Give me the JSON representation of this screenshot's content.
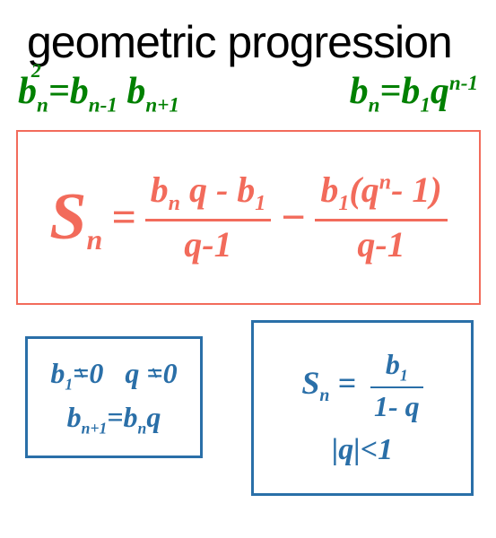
{
  "title": "geometric progression",
  "colors": {
    "title": "#000000",
    "green": "#008000",
    "coral": "#f26b5b",
    "blue": "#2a6fa8",
    "background": "#ffffff"
  },
  "green_formulas": {
    "left": {
      "base_b": "b",
      "exp2": "2",
      "sub_n": "n",
      "eq": "=",
      "b2": "b",
      "sub_nm1": "n-1",
      "b3": "b",
      "sub_np1": "n+1"
    },
    "right": {
      "b1": "b",
      "sub_n": "n",
      "eq": "=",
      "b2": "b",
      "sub_1": "1",
      "q": "q",
      "exp_nm1": "n-1"
    }
  },
  "main_formula": {
    "S": "S",
    "sub_n": "n",
    "eq": "=",
    "frac1_num_b": "b",
    "frac1_num_subn": "n",
    "frac1_num_q": " q - b",
    "frac1_num_sub1": "1",
    "frac1_den": "q-1",
    "minus": "−",
    "frac2_num_b": "b",
    "frac2_num_sub1": "1",
    "frac2_num_p1": "(q",
    "frac2_num_supn": "n",
    "frac2_num_p2": "- 1)",
    "frac2_den": "q-1"
  },
  "blue_left": {
    "b1": "b",
    "sub1": "1",
    "neq": "=",
    "zero": "0",
    "q": "q",
    "b2l": "b",
    "sub_np1": "n+1",
    "eq": "=",
    "b2r": "b",
    "sub_n": "n",
    "q2": "q"
  },
  "blue_right": {
    "S": "S",
    "subn": "n",
    "eq": "=",
    "num_b": "b",
    "num_sub1": "1",
    "den": "1- q",
    "cond_l": "|q|",
    "cond_lt": "<",
    "cond_r": "1"
  }
}
